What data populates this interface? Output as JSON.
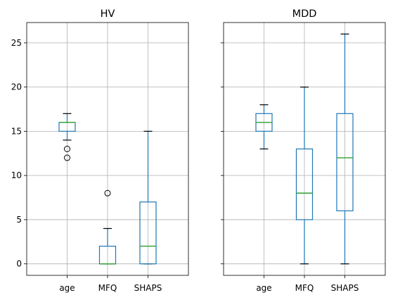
{
  "colors": {
    "box": "#1f77b4",
    "median": "#2ca02c",
    "caps_fliers": "#000000",
    "grid": "#b0b0b0"
  },
  "chart_data": {
    "type": "boxplot",
    "sharey": true,
    "grid": true,
    "ylim": [
      -1.3,
      27.3
    ],
    "yticks": [
      0,
      5,
      10,
      15,
      20,
      25
    ],
    "panels": [
      {
        "title": "HV",
        "categories": [
          "age",
          "MFQ",
          "SHAPS"
        ],
        "boxes": [
          {
            "label": "age",
            "whislo": 14,
            "q1": 15,
            "med": 16,
            "q3": 16,
            "whishi": 17,
            "fliers": [
              13,
              12
            ]
          },
          {
            "label": "MFQ",
            "whislo": 0,
            "q1": 0,
            "med": 0,
            "q3": 2,
            "whishi": 4,
            "fliers": [
              8
            ]
          },
          {
            "label": "SHAPS",
            "whislo": 0,
            "q1": 0,
            "med": 2,
            "q3": 7,
            "whishi": 15,
            "fliers": []
          }
        ]
      },
      {
        "title": "MDD",
        "categories": [
          "age",
          "MFQ",
          "SHAPS"
        ],
        "boxes": [
          {
            "label": "age",
            "whislo": 13,
            "q1": 15,
            "med": 16,
            "q3": 17,
            "whishi": 18,
            "fliers": []
          },
          {
            "label": "MFQ",
            "whislo": 0,
            "q1": 5,
            "med": 8,
            "q3": 13,
            "whishi": 20,
            "fliers": []
          },
          {
            "label": "SHAPS",
            "whislo": 0,
            "q1": 6,
            "med": 12,
            "q3": 17,
            "whishi": 26,
            "fliers": []
          }
        ]
      }
    ]
  }
}
